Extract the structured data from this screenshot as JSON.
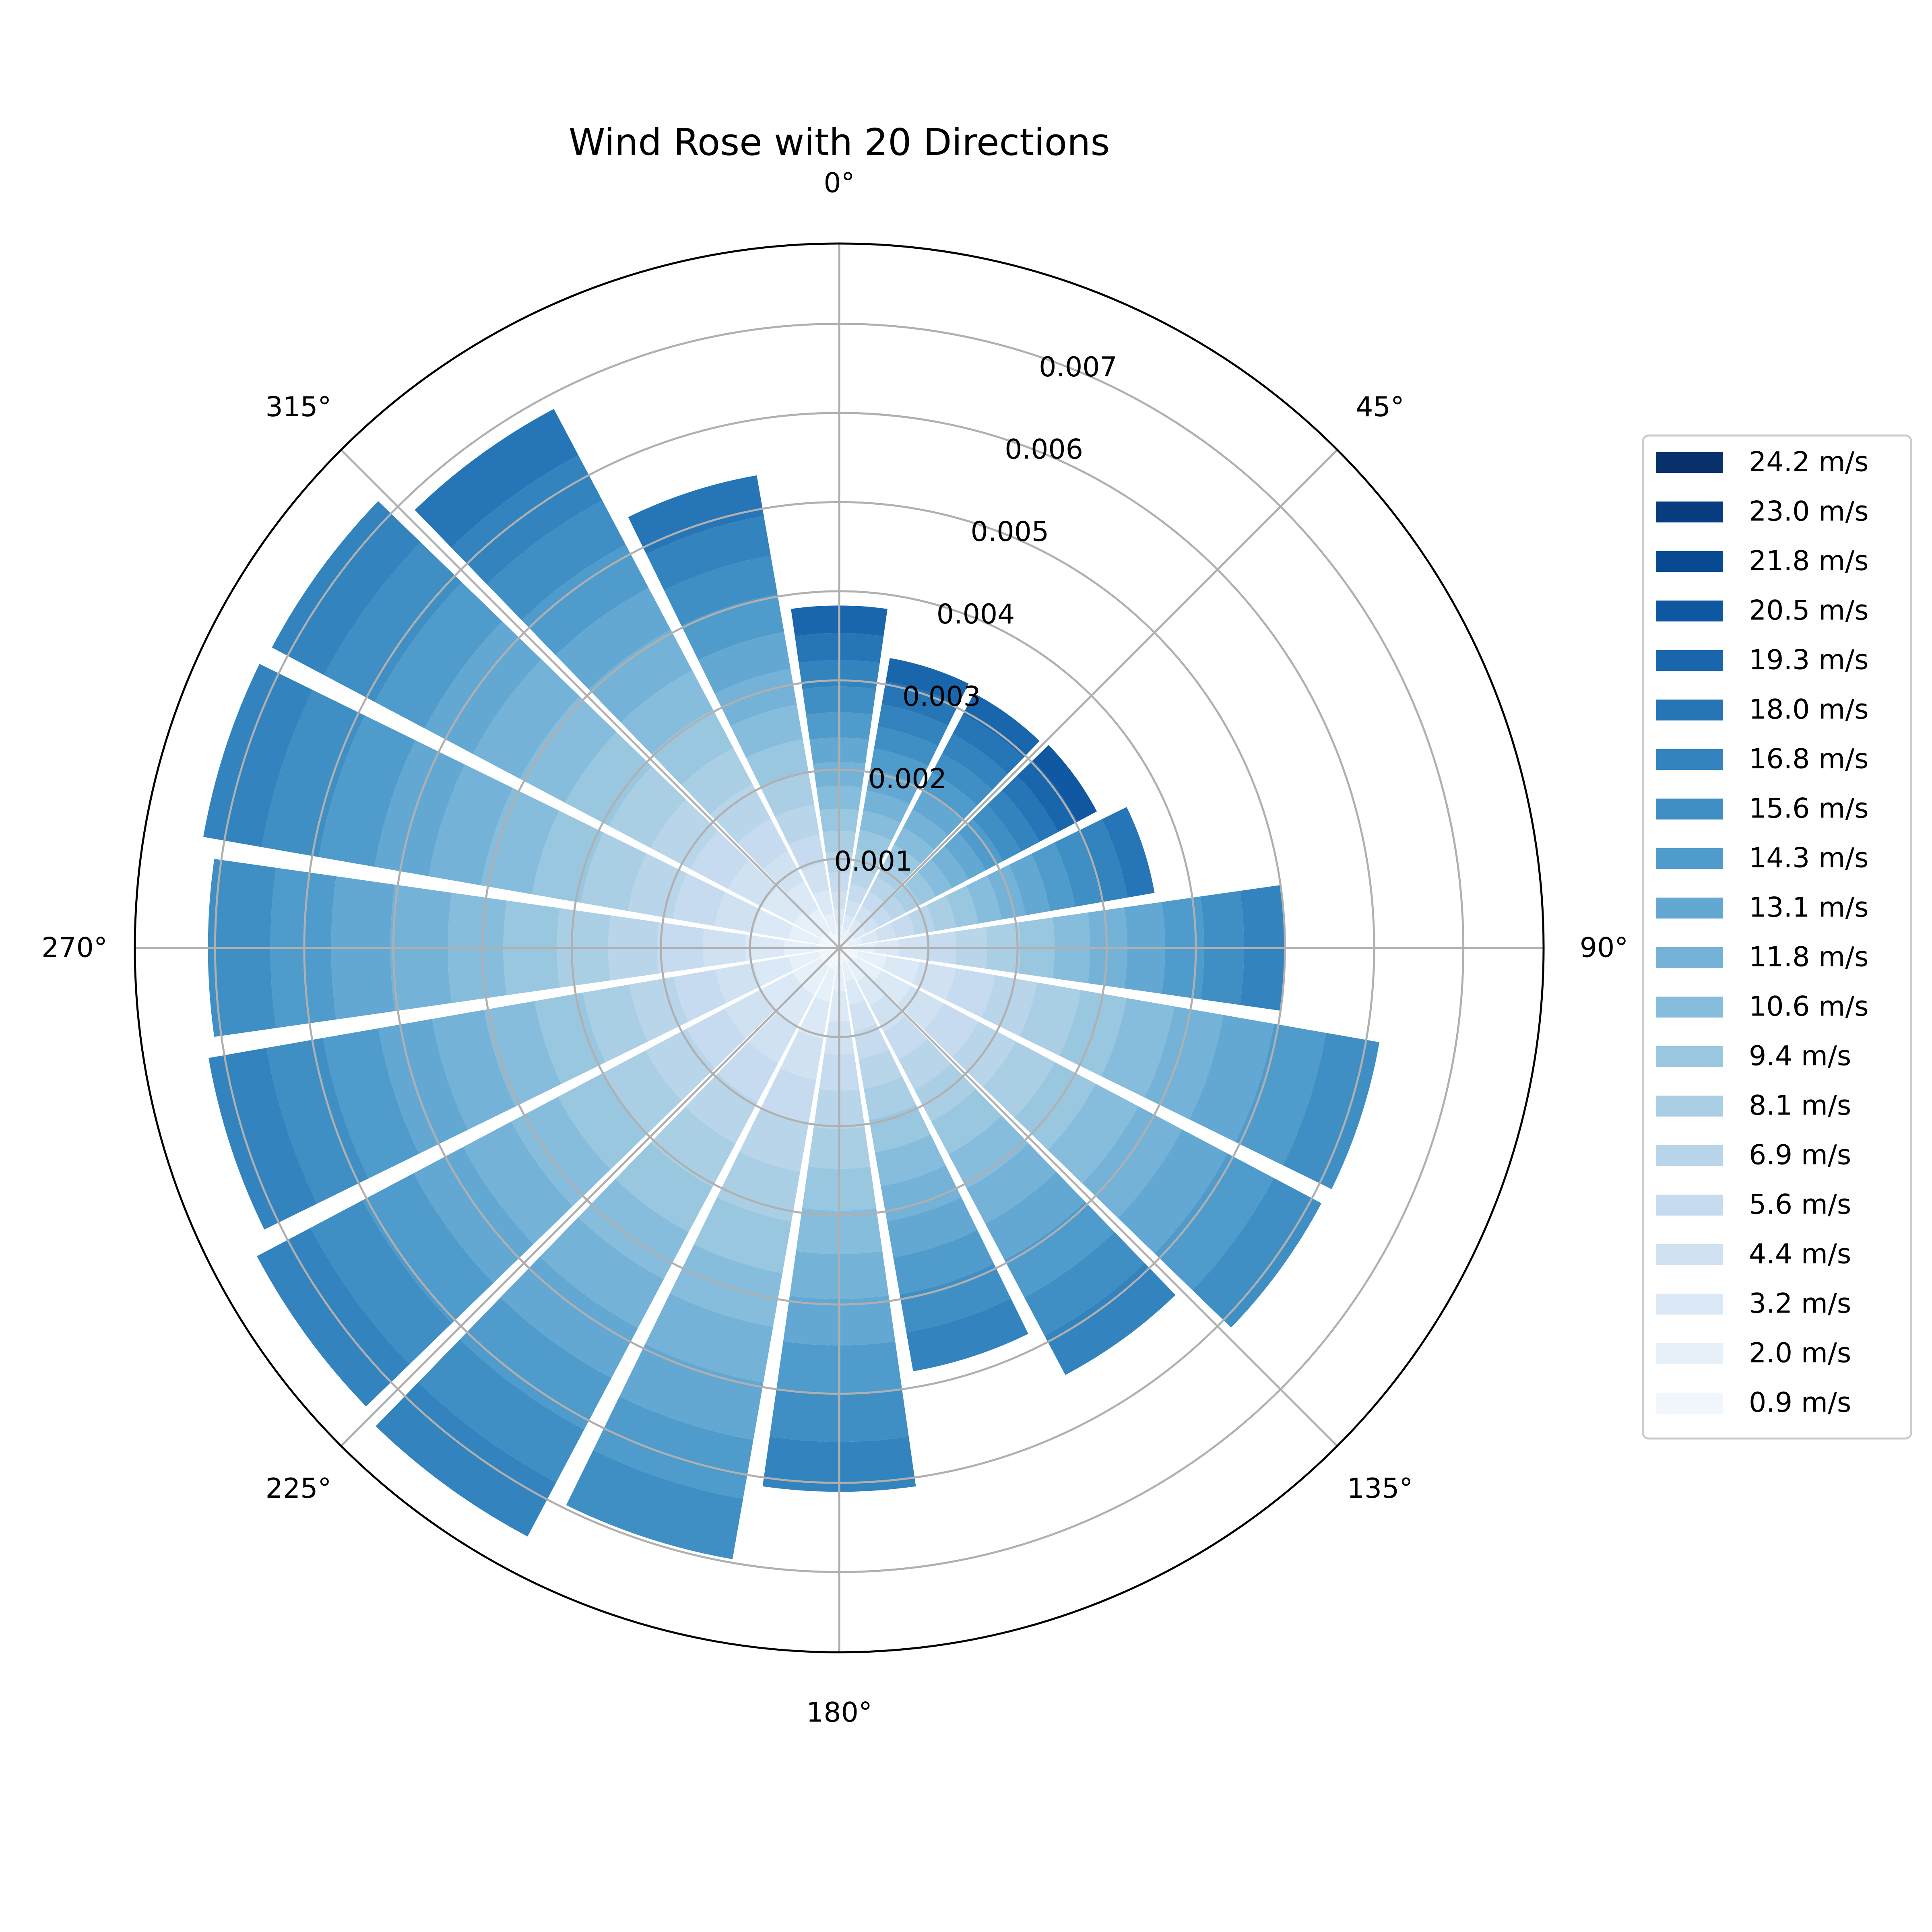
{
  "chart_data": {
    "type": "bar",
    "subtype": "polar-stacked-bar",
    "title": "Wind Rose with 20 Directions",
    "direction_tick_labels": [
      "0°",
      "45°",
      "90°",
      "135°",
      "180°",
      "225°",
      "270°",
      "315°"
    ],
    "radial_tick_values": [
      0.001,
      0.002,
      0.003,
      0.004,
      0.005,
      0.006,
      0.007
    ],
    "radial_tick_labels": [
      "0.001",
      "0.002",
      "0.003",
      "0.004",
      "0.005",
      "0.006",
      "0.007"
    ],
    "radial_range": [
      0,
      0.0079
    ],
    "grid": true,
    "legend_position": "right",
    "directions_deg": [
      0,
      18,
      36,
      54,
      72,
      90,
      108,
      126,
      144,
      162,
      180,
      198,
      216,
      234,
      252,
      270,
      288,
      306,
      324,
      342
    ],
    "speed_bins": [
      "0.9 m/s",
      "2.0 m/s",
      "3.2 m/s",
      "4.4 m/s",
      "5.6 m/s",
      "6.9 m/s",
      "8.1 m/s",
      "9.4 m/s",
      "10.6 m/s",
      "11.8 m/s",
      "13.1 m/s",
      "14.3 m/s",
      "15.6 m/s",
      "16.8 m/s",
      "18.0 m/s",
      "19.3 m/s",
      "20.5 m/s",
      "21.8 m/s",
      "23.0 m/s",
      "24.2 m/s"
    ],
    "bin_colors": [
      "#f0f6fc",
      "#e6f0f9",
      "#dbe9f6",
      "#d0e2f2",
      "#c6dbef",
      "#b8d5ea",
      "#aacfe5",
      "#99c7e0",
      "#86bcdc",
      "#74b2d8",
      "#62a8d3",
      "#4f9bcc",
      "#3f8fc5",
      "#3283be",
      "#2575b7",
      "#1966ad",
      "#1058a2",
      "#084a91",
      "#083d7f",
      "#08306b"
    ],
    "cumulative_totals": [
      0.00384,
      0.0033,
      0.00323,
      0.00327,
      0.00359,
      0.005,
      0.00615,
      0.00612,
      0.00542,
      0.00482,
      0.0061,
      0.00696,
      0.00747,
      0.00739,
      0.00718,
      0.00708,
      0.00724,
      0.0072,
      0.00684,
      0.00538
    ],
    "top_band_bin": [
      15,
      15,
      15,
      16,
      14,
      13,
      12,
      12,
      13,
      13,
      13,
      12,
      13,
      13,
      13,
      12,
      13,
      13,
      14,
      14
    ]
  },
  "legend": {
    "entries": [
      "24.2 m/s",
      "23.0 m/s",
      "21.8 m/s",
      "20.5 m/s",
      "19.3 m/s",
      "18.0 m/s",
      "16.8 m/s",
      "15.6 m/s",
      "14.3 m/s",
      "13.1 m/s",
      "11.8 m/s",
      "10.6 m/s",
      "9.4 m/s",
      "8.1 m/s",
      "6.9 m/s",
      "5.6 m/s",
      "4.4 m/s",
      "3.2 m/s",
      "2.0 m/s",
      "0.9 m/s"
    ]
  }
}
